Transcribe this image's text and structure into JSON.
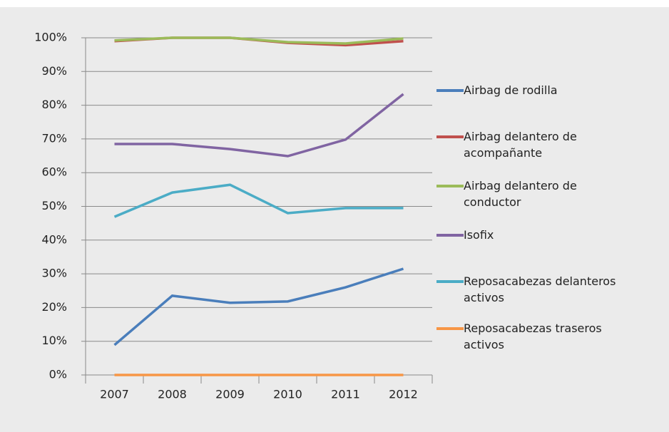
{
  "chart_data": {
    "type": "line",
    "categories": [
      "2007",
      "2008",
      "2009",
      "2010",
      "2011",
      "2012"
    ],
    "series": [
      {
        "name": "Airbag de rodilla",
        "color": "#4a7ebb",
        "values": [
          8.9,
          23.5,
          21.4,
          21.8,
          26,
          31.5
        ]
      },
      {
        "name": "Airbag delantero de acompañante",
        "color": "#c0504d",
        "values": [
          99,
          100,
          100,
          98.5,
          97.8,
          99
        ]
      },
      {
        "name": "Airbag delantero de conductor",
        "color": "#9bbb59",
        "values": [
          99.2,
          100,
          100,
          98.7,
          98.3,
          99.8
        ]
      },
      {
        "name": "Isofix",
        "color": "#8064a2",
        "values": [
          68.5,
          68.5,
          67,
          64.9,
          69.8,
          83.3
        ]
      },
      {
        "name": "Reposacabezas delanteros activos",
        "color": "#4bacc6",
        "values": [
          46.9,
          54.1,
          56.4,
          48,
          49.5,
          49.5
        ]
      },
      {
        "name": "Reposacabezas traseros activos",
        "color": "#f79646",
        "values": [
          0,
          0,
          0,
          0,
          0,
          0
        ]
      }
    ],
    "ylim": [
      0,
      100
    ],
    "yticks": [
      {
        "value": 0,
        "label": "0%"
      },
      {
        "value": 10,
        "label": "10%"
      },
      {
        "value": 20,
        "label": "20%"
      },
      {
        "value": 30,
        "label": "30%"
      },
      {
        "value": 40,
        "label": "40%"
      },
      {
        "value": 50,
        "label": "50%"
      },
      {
        "value": 60,
        "label": "60%"
      },
      {
        "value": 70,
        "label": "70%"
      },
      {
        "value": 80,
        "label": "80%"
      },
      {
        "value": 90,
        "label": "90%"
      },
      {
        "value": 100,
        "label": "100%"
      }
    ],
    "grid": true,
    "legend": "right"
  }
}
